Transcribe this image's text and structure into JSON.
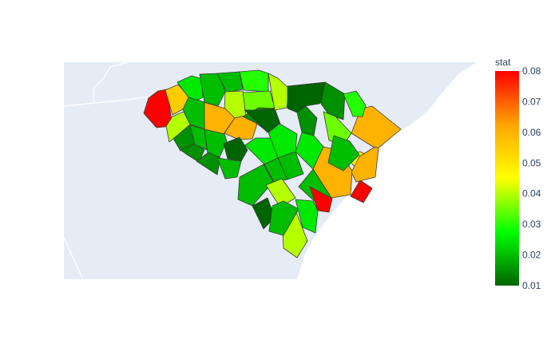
{
  "chart_data": {
    "type": "choropleth",
    "colorbar": {
      "title": "stat",
      "range": [
        0.01,
        0.08
      ],
      "ticks": [
        "0.01",
        "0.02",
        "0.03",
        "0.04",
        "0.05",
        "0.06",
        "0.07",
        "0.08"
      ],
      "colorscale": [
        "#006400",
        "#00ff00",
        "#ffff00",
        "#ffa500",
        "#ff0000"
      ]
    },
    "colors": {
      "land": "#e5ecf6",
      "background": "#ffffff",
      "region_border": "#3a3a3a",
      "state_border": "#ffffff"
    },
    "regions_values": [
      0.08,
      0.055,
      0.025,
      0.02,
      0.02,
      0.03,
      0.035,
      0.04,
      0.06,
      0.06,
      0.02,
      0.015,
      0.015,
      0.04,
      0.02,
      0.02,
      0.015,
      0.01,
      0.02,
      0.015,
      0.025,
      0.01,
      0.025,
      0.04,
      0.02,
      0.02,
      0.01,
      0.015,
      0.025,
      0.06,
      0.06,
      0.08,
      0.045,
      0.06,
      0.02,
      0.02,
      0.04,
      0.08,
      0.04,
      0.01,
      0.02,
      0.015,
      0.03,
      0.035,
      0.025,
      0.02
    ]
  }
}
